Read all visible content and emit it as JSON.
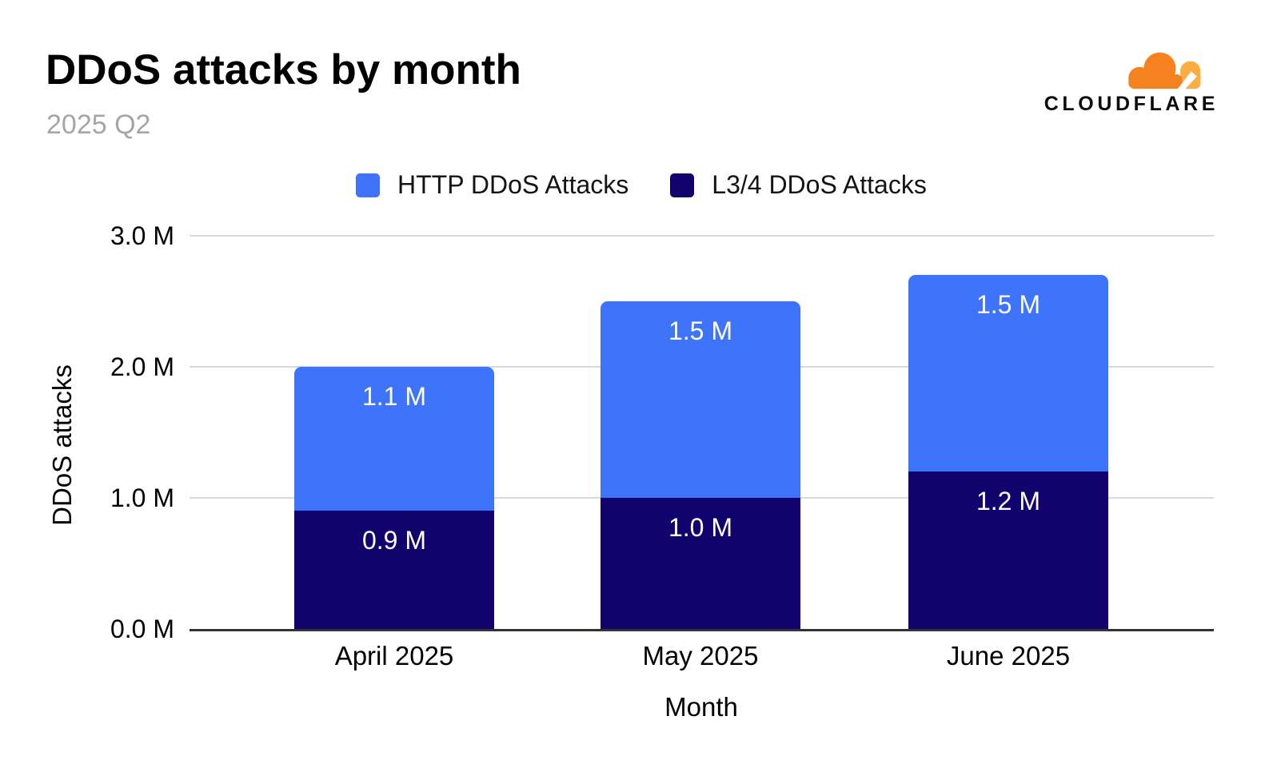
{
  "header": {
    "title": "DDoS attacks by month",
    "subtitle": "2025 Q2",
    "brand": {
      "name": "CLOUDFLARE",
      "cloud_main_color": "#F6821F",
      "cloud_light_color": "#FBAD41"
    }
  },
  "chart_data": {
    "type": "bar",
    "stacked": true,
    "title": "DDoS attacks by month",
    "subtitle": "2025 Q2",
    "categories": [
      "April 2025",
      "May 2025",
      "June 2025"
    ],
    "series": [
      {
        "name": "HTTP DDoS Attacks",
        "color": "#3E73FC",
        "stack_position": "top",
        "values": [
          1.1,
          1.5,
          1.5
        ],
        "data_labels": [
          "1.1 M",
          "1.5 M",
          "1.5 M"
        ]
      },
      {
        "name": "L3/4 DDoS Attacks",
        "color": "#12026E",
        "stack_position": "bottom",
        "values": [
          0.9,
          1.0,
          1.2
        ],
        "data_labels": [
          "0.9 M",
          "1.0 M",
          "1.2 M"
        ]
      }
    ],
    "totals": [
      2.0,
      2.5,
      2.7
    ],
    "unit": "millions",
    "xlabel": "Month",
    "ylabel": "DDoS attacks",
    "ylim": [
      0,
      3.0
    ],
    "yticks": [
      {
        "value": 0.0,
        "label": "0.0 M"
      },
      {
        "value": 1.0,
        "label": "1.0 M"
      },
      {
        "value": 2.0,
        "label": "2.0 M"
      },
      {
        "value": 3.0,
        "label": "3.0 M"
      }
    ],
    "grid": true,
    "legend_position": "top"
  }
}
